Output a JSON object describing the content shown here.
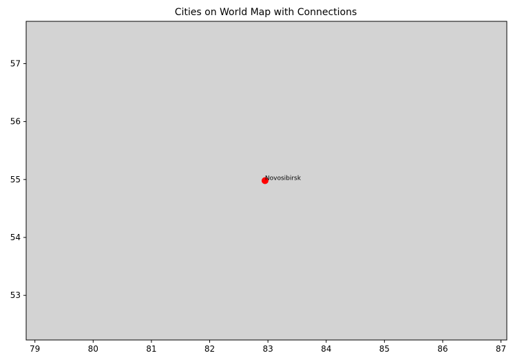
{
  "chart_data": {
    "type": "scatter",
    "title": "Cities on World Map with Connections",
    "xlabel": "",
    "ylabel": "",
    "xlim": [
      78.85,
      87.1
    ],
    "ylim": [
      52.23,
      57.73
    ],
    "x_ticks": [
      79,
      80,
      81,
      82,
      83,
      84,
      85,
      86,
      87
    ],
    "y_ticks": [
      53,
      54,
      55,
      56,
      57
    ],
    "grid": false,
    "plot_background": "#d3d3d3",
    "points": [
      {
        "label": "Novosibirsk",
        "x": 82.95,
        "y": 54.98,
        "color": "#ff0000"
      }
    ]
  }
}
